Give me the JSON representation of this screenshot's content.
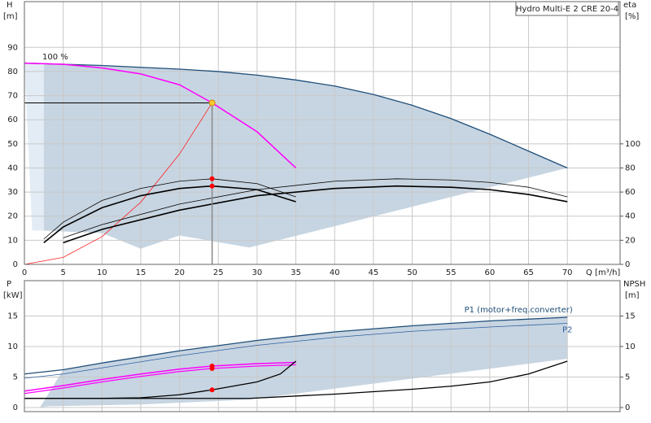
{
  "chart_data": [
    {
      "type": "line",
      "title": "Hydro Multi-E 2 CRE 20-4",
      "y_label": "H",
      "y_unit": "[m]",
      "y2_label": "eta",
      "y2_unit": "[%]",
      "x_label": "Q [m³/h]",
      "annotation": "100 %",
      "xlim": [
        0,
        76.8
      ],
      "xticks": [
        0,
        5,
        10,
        15,
        20,
        25,
        30,
        35,
        40,
        45,
        50,
        55,
        60,
        65,
        70
      ],
      "ylim": [
        0,
        109
      ],
      "yticks": [
        0,
        10,
        20,
        30,
        40,
        50,
        60,
        70,
        80,
        90
      ],
      "y2lim": [
        0,
        218
      ],
      "y2ticks": [
        0,
        20,
        40,
        60,
        80,
        100
      ],
      "grid": true,
      "areas": [
        {
          "color": "#e3ecf4",
          "x": [
            0,
            2.5,
            2.5,
            1
          ],
          "values": [
            83.5,
            83,
            14,
            14
          ]
        },
        {
          "color": "#c7d5e2",
          "x": [
            2.5,
            10,
            20,
            25,
            30,
            35,
            40,
            45,
            50,
            55,
            60,
            65,
            70,
            29,
            20,
            15,
            10,
            2.5
          ],
          "values": [
            83,
            82.5,
            81,
            80,
            78.5,
            76.5,
            74,
            70.5,
            66,
            60.5,
            54,
            47,
            40,
            7,
            12,
            6.5,
            13,
            14
          ]
        }
      ],
      "series": [
        {
          "color": "#1f4e79",
          "linewidth": 1.3,
          "x": [
            0,
            10,
            20,
            25,
            30,
            35,
            40,
            45,
            50,
            55,
            60,
            65,
            70
          ],
          "values": [
            83.5,
            82.5,
            81,
            80,
            78.5,
            76.5,
            74,
            70.5,
            66,
            60.5,
            54,
            47,
            40
          ]
        },
        {
          "color": "#ff00ff",
          "linewidth": 1.5,
          "x": [
            0,
            5,
            10,
            15,
            20,
            24.2,
            30,
            35
          ],
          "values": [
            83.5,
            83,
            81.5,
            79,
            74.5,
            67,
            55,
            40
          ]
        },
        {
          "color": "#ff2020",
          "linewidth": 0.8,
          "x": [
            0,
            5,
            10,
            15,
            20,
            24.2
          ],
          "values": [
            0,
            2.9,
            11.5,
            25.8,
            45.8,
            67
          ]
        },
        {
          "color": "#000000",
          "linewidth": 0.8,
          "axis": "y2",
          "x": [
            2.5,
            5,
            10,
            15,
            20,
            24.2,
            30,
            35
          ],
          "values": [
            21,
            35,
            53,
            63,
            69,
            71,
            67,
            56
          ]
        },
        {
          "color": "#000000",
          "linewidth": 1.6,
          "axis": "y2",
          "x": [
            2.5,
            5,
            10,
            15,
            20,
            24.2,
            30,
            35
          ],
          "values": [
            18,
            31,
            47,
            57,
            63,
            65,
            62,
            52
          ]
        },
        {
          "color": "#000000",
          "linewidth": 0.8,
          "axis": "y2",
          "x": [
            5,
            10,
            20,
            30,
            40,
            48,
            55,
            60,
            65,
            70
          ],
          "values": [
            22,
            33,
            50,
            62,
            69,
            71,
            70,
            68,
            64,
            56
          ]
        },
        {
          "color": "#000000",
          "linewidth": 1.6,
          "axis": "y2",
          "x": [
            5,
            10,
            20,
            30,
            40,
            48,
            55,
            60,
            65,
            70
          ],
          "values": [
            18,
            29,
            45,
            57,
            63,
            65,
            64,
            62,
            58,
            52
          ]
        }
      ],
      "duty_point": {
        "x": 24.2,
        "y": 67,
        "color": "#ffcc33"
      },
      "markers": {
        "color": "#ff0000",
        "axis": "y2",
        "x": [
          24.2,
          24.2
        ],
        "values": [
          71,
          65
        ]
      }
    },
    {
      "type": "line",
      "y_label": "P",
      "y_unit": "[kW]",
      "y2_label": "NPSH",
      "y2_unit": "[m]",
      "xlim": [
        0,
        76.8
      ],
      "xticks": [
        0,
        5,
        10,
        15,
        20,
        25,
        30,
        35,
        40,
        45,
        50,
        55,
        60,
        65,
        70
      ],
      "ylim": [
        -0.67,
        20.8
      ],
      "yticks": [
        0,
        5,
        10,
        15
      ],
      "y2lim": [
        -0.67,
        20.8
      ],
      "y2ticks": [
        0,
        5,
        10,
        15
      ],
      "grid": true,
      "areas": [
        {
          "color": "#c7d5e2",
          "x": [
            2,
            5,
            10,
            20,
            30,
            40,
            50,
            60,
            70,
            70,
            29,
            15,
            3
          ],
          "values": [
            0,
            6.2,
            7.3,
            9.3,
            11,
            12.4,
            13.4,
            14.2,
            14.8,
            8,
            1.3,
            0.5,
            0.2
          ]
        }
      ],
      "series": [
        {
          "name": "P1 (motor+freq.converter)",
          "color": "#1f4e79",
          "linewidth": 1.3,
          "x": [
            0,
            5,
            10,
            20,
            30,
            40,
            50,
            60,
            70
          ],
          "values": [
            5.5,
            6.2,
            7.3,
            9.3,
            11,
            12.4,
            13.4,
            14.2,
            14.8
          ]
        },
        {
          "name": "P2",
          "color": "#2f5f9f",
          "linewidth": 0.8,
          "x": [
            0,
            5,
            10,
            20,
            30,
            40,
            50,
            60,
            70
          ],
          "values": [
            4.8,
            5.5,
            6.5,
            8.5,
            10.2,
            11.5,
            12.5,
            13.2,
            13.8
          ]
        },
        {
          "color": "#ff00ff",
          "linewidth": 1.5,
          "x": [
            0,
            5,
            10,
            15,
            20,
            24.2,
            30,
            35
          ],
          "values": [
            2.7,
            3.6,
            4.6,
            5.5,
            6.3,
            6.8,
            7.2,
            7.4
          ]
        },
        {
          "color": "#ff00ff",
          "linewidth": 1.2,
          "x": [
            0,
            5,
            10,
            15,
            20,
            24.2,
            30,
            35
          ],
          "values": [
            2.3,
            3.2,
            4.2,
            5.1,
            5.9,
            6.4,
            6.8,
            7
          ]
        },
        {
          "color": "#000000",
          "linewidth": 1.3,
          "axis": "y2",
          "x": [
            0,
            10,
            15,
            20,
            24.2,
            30,
            33,
            35
          ],
          "values": [
            1.5,
            1.5,
            1.6,
            2.1,
            2.9,
            4.2,
            5.5,
            7.6
          ]
        },
        {
          "color": "#000000",
          "linewidth": 1.3,
          "axis": "y2",
          "x": [
            0,
            29,
            40,
            50,
            55,
            60,
            65,
            70
          ],
          "values": [
            1.5,
            1.5,
            2.2,
            3,
            3.5,
            4.2,
            5.5,
            7.6
          ]
        }
      ],
      "markers": {
        "color": "#ff0000",
        "x": [
          24.2,
          24.2,
          24.2
        ],
        "values": [
          6.8,
          6.4,
          2.9
        ],
        "axes": [
          "y",
          "y",
          "y2"
        ]
      }
    }
  ]
}
